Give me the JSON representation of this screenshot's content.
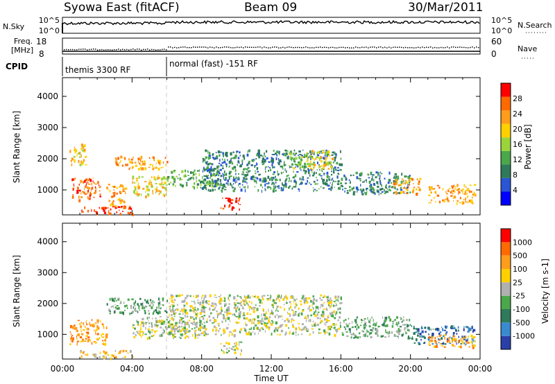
{
  "header": {
    "title_left": "Syowa East (fitACF)",
    "title_center": "Beam 09",
    "title_right": "30/Mar/2011"
  },
  "nsky_panel": {
    "label_left": "N.Sky",
    "ticks_left": [
      "10^5",
      "10^0"
    ],
    "label_right": "N.Search",
    "ticks_right": [
      "10^5",
      "10^0"
    ]
  },
  "freq_panel": {
    "label_left_1": "Freq.",
    "label_left_2": "[MHz]",
    "ticks_left": [
      "18",
      "8"
    ],
    "label_right": "Nave",
    "ticks_right": [
      "60",
      "0"
    ]
  },
  "cpid_panel": {
    "label": "CPID",
    "segments": [
      {
        "name": "themis 3300 RF",
        "start_hour": 0
      },
      {
        "name": "normal (fast) -151 RF",
        "start_hour": 6
      }
    ]
  },
  "x_axis": {
    "label": "Time UT",
    "ticks": [
      "00:00",
      "04:00",
      "08:00",
      "12:00",
      "16:00",
      "20:00",
      "00:00"
    ],
    "tick_hours": [
      0,
      4,
      8,
      12,
      16,
      20,
      24
    ]
  },
  "power_colorbar": {
    "label": "Power [dB]",
    "ticks": [
      "28",
      "24",
      "20",
      "16",
      "12",
      "8",
      "4"
    ],
    "colors": [
      "#0000ff",
      "#2a55d4",
      "#2f7a5a",
      "#4aa84a",
      "#9ad43a",
      "#ffd000",
      "#ff9d1a",
      "#ff6a00",
      "#ff0000"
    ]
  },
  "velocity_colorbar": {
    "label": "Velocity [m s-1]",
    "ticks": [
      "1000",
      "500",
      "100",
      "25",
      "-25",
      "-100",
      "-500",
      "-1000"
    ],
    "colors": [
      "#2a3fa8",
      "#3a8ad0",
      "#2f7a5a",
      "#4aa84a",
      "#b0b0b0",
      "#ffd000",
      "#ff9d1a",
      "#ff6a00",
      "#ff0000"
    ]
  },
  "chart_data": [
    {
      "type": "heatmap",
      "ylabel": "Slant Range [km]",
      "yticks": [
        "1000",
        "2000",
        "3000",
        "4000"
      ],
      "ylim": [
        200,
        4600
      ],
      "xlim": [
        0,
        24
      ],
      "regions": [
        {
          "t0": 0.4,
          "t1": 1.3,
          "r0": 1800,
          "r1": 2500,
          "level": 5
        },
        {
          "t0": 0.5,
          "t1": 2.2,
          "r0": 700,
          "r1": 1400,
          "level": 7
        },
        {
          "t0": 1.0,
          "t1": 4.0,
          "r0": 250,
          "r1": 500,
          "level": 8
        },
        {
          "t0": 2.5,
          "t1": 3.6,
          "r0": 500,
          "r1": 1200,
          "level": 6
        },
        {
          "t0": 3.0,
          "t1": 6.0,
          "r0": 1700,
          "r1": 2100,
          "level": 6
        },
        {
          "t0": 4.0,
          "t1": 6.0,
          "r0": 800,
          "r1": 1500,
          "level": 5
        },
        {
          "t0": 6.0,
          "t1": 9.0,
          "r0": 1100,
          "r1": 1700,
          "level": 3
        },
        {
          "t0": 8.0,
          "t1": 16.0,
          "r0": 1000,
          "r1": 2300,
          "level": 2
        },
        {
          "t0": 9.0,
          "t1": 10.2,
          "r0": 400,
          "r1": 800,
          "level": 8
        },
        {
          "t0": 14.0,
          "t1": 15.5,
          "r0": 1600,
          "r1": 2300,
          "level": 5
        },
        {
          "t0": 13.0,
          "t1": 14.5,
          "r0": 1700,
          "r1": 2200,
          "level": 4
        },
        {
          "t0": 16.0,
          "t1": 20.0,
          "r0": 900,
          "r1": 1600,
          "level": 2
        },
        {
          "t0": 19.0,
          "t1": 20.5,
          "r0": 900,
          "r1": 1400,
          "level": 6
        },
        {
          "t0": 21.0,
          "t1": 23.7,
          "r0": 600,
          "r1": 1200,
          "level": 6
        }
      ]
    },
    {
      "type": "heatmap",
      "ylabel": "Slant Range [km]",
      "yticks": [
        "1000",
        "2000",
        "3000",
        "4000"
      ],
      "ylim": [
        200,
        4600
      ],
      "xlim": [
        0,
        24
      ],
      "regions": [
        {
          "t0": 0.4,
          "t1": 2.5,
          "r0": 700,
          "r1": 1500,
          "level": 6
        },
        {
          "t0": 1.0,
          "t1": 4.0,
          "r0": 250,
          "r1": 500,
          "level": 5
        },
        {
          "t0": 2.5,
          "t1": 6.0,
          "r0": 1700,
          "r1": 2200,
          "level": 3
        },
        {
          "t0": 4.0,
          "t1": 8.0,
          "r0": 900,
          "r1": 1600,
          "level": 4
        },
        {
          "t0": 6.0,
          "t1": 16.0,
          "r0": 1000,
          "r1": 2300,
          "level": 4
        },
        {
          "t0": 9.0,
          "t1": 10.3,
          "r0": 400,
          "r1": 800,
          "level": 4
        },
        {
          "t0": 16.0,
          "t1": 20.0,
          "r0": 900,
          "r1": 1600,
          "level": 3
        },
        {
          "t0": 20.0,
          "t1": 23.7,
          "r0": 700,
          "r1": 1300,
          "level": 1
        },
        {
          "t0": 21.0,
          "t1": 23.7,
          "r0": 600,
          "r1": 1000,
          "level": 6
        }
      ]
    }
  ]
}
